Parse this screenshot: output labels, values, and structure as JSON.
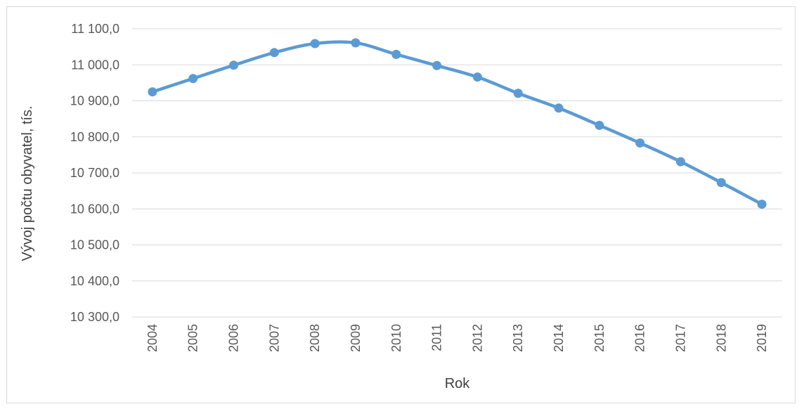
{
  "chart_data": {
    "type": "line",
    "title": "",
    "xlabel": "Rok",
    "ylabel": "Vývoj počtu obyvatel, tís.",
    "categories": [
      "2004",
      "2005",
      "2006",
      "2007",
      "2008",
      "2009",
      "2010",
      "2011",
      "2012",
      "2013",
      "2014",
      "2015",
      "2016",
      "2017",
      "2018",
      "2019"
    ],
    "series": [
      {
        "name": "",
        "values": [
          10925,
          10962,
          10999,
          11034,
          11059,
          11061,
          11029,
          10998,
          10966,
          10921,
          10880,
          10832,
          10783,
          10731,
          10673,
          10613
        ]
      }
    ],
    "ylim": [
      10300,
      11100
    ],
    "yticks": [
      10300,
      10400,
      10500,
      10600,
      10700,
      10800,
      10900,
      11000,
      11100
    ],
    "ytick_labels": [
      "10 300,0",
      "10 400,0",
      "10 500,0",
      "10 600,0",
      "10 700,0",
      "10 800,0",
      "10 900,0",
      "11 000,0",
      "11 100,0"
    ],
    "grid": true,
    "legend": "none",
    "colors": {
      "series": "#5b9bd5",
      "grid": "#d9d9d9",
      "text": "#595959"
    }
  }
}
